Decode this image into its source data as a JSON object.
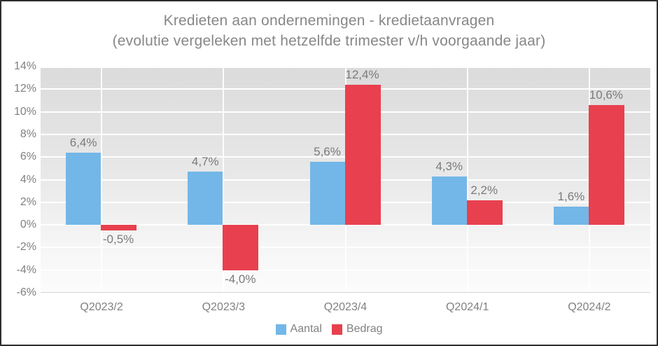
{
  "title": {
    "line1": "Kredieten aan ondernemingen - kredietaanvragen",
    "line2": "(evolutie vergeleken met hetzelfde trimester v/h voorgaande jaar)"
  },
  "colors": {
    "aantal": "#73b7e8",
    "bedrag": "#e8404e",
    "text_gray": "#808080"
  },
  "chart_data": {
    "type": "bar",
    "title": "Kredieten aan ondernemingen - kredietaanvragen (evolutie vergeleken met hetzelfde trimester v/h voorgaande jaar)",
    "categories": [
      "Q2023/2",
      "Q2023/3",
      "Q2023/4",
      "Q2024/1",
      "Q2024/2"
    ],
    "series": [
      {
        "name": "Aantal",
        "color_key": "aantal",
        "values": [
          6.4,
          4.7,
          5.6,
          4.3,
          1.6
        ],
        "labels": [
          "6,4%",
          "4,7%",
          "5,6%",
          "4,3%",
          "1,6%"
        ]
      },
      {
        "name": "Bedrag",
        "color_key": "bedrag",
        "values": [
          -0.5,
          -4.0,
          12.4,
          2.2,
          10.6
        ],
        "labels": [
          "-0,5%",
          "-4,0%",
          "12,4%",
          "2,2%",
          "10,6%"
        ]
      }
    ],
    "ylim": [
      -6,
      14
    ],
    "ytick_step": 2,
    "ytick_labels": [
      "14%",
      "12%",
      "10%",
      "8%",
      "6%",
      "4%",
      "2%",
      "0%",
      "-2%",
      "-4%",
      "-6%"
    ],
    "grid": true,
    "legend_position": "bottom"
  }
}
